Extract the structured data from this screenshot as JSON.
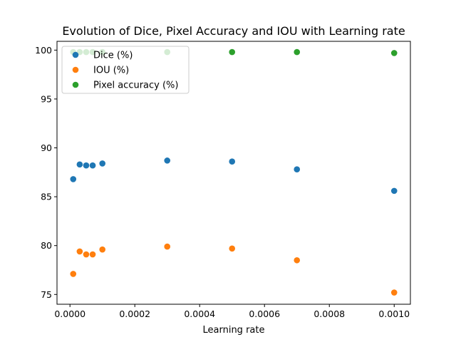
{
  "chart_data": {
    "type": "scatter",
    "title": "Evolution of Dice, Pixel Accuracy and IOU with Learning rate",
    "xlabel": "Learning rate",
    "ylabel": "",
    "xlim": [
      -4e-05,
      0.00105
    ],
    "ylim": [
      74.0,
      100.9
    ],
    "xticks": [
      0.0,
      0.0002,
      0.0004,
      0.0006,
      0.0008,
      0.001
    ],
    "xtick_labels": [
      "0.0000",
      "0.0002",
      "0.0004",
      "0.0006",
      "0.0008",
      "0.0010"
    ],
    "yticks": [
      75,
      80,
      85,
      90,
      95,
      100
    ],
    "ytick_labels": [
      "75",
      "80",
      "85",
      "90",
      "95",
      "100"
    ],
    "grid": false,
    "legend_position": "top-left",
    "x": [
      1e-05,
      3e-05,
      5e-05,
      7e-05,
      0.0001,
      0.0003,
      0.0005,
      0.0007,
      0.001
    ],
    "series": [
      {
        "name": "Dice (%)",
        "color": "#1f77b4",
        "values": [
          86.8,
          88.3,
          88.2,
          88.2,
          88.4,
          88.7,
          88.6,
          87.8,
          85.6
        ]
      },
      {
        "name": "IOU (%)",
        "color": "#ff7f0e",
        "values": [
          77.1,
          79.4,
          79.1,
          79.1,
          79.6,
          79.9,
          79.7,
          78.5,
          75.2
        ]
      },
      {
        "name": "Pixel accuracy (%)",
        "color": "#2ca02c",
        "values": [
          99.8,
          99.8,
          99.8,
          99.8,
          99.8,
          99.8,
          99.8,
          99.8,
          99.7
        ]
      }
    ]
  }
}
